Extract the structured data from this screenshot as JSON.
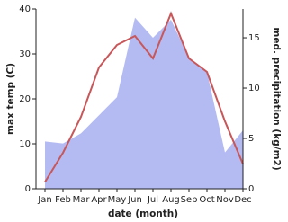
{
  "chart_data": {
    "type": "line",
    "categories": [
      "Jan",
      "Feb",
      "Mar",
      "Apr",
      "May",
      "Jun",
      "Jul",
      "Aug",
      "Sep",
      "Oct",
      "Nov",
      "Dec"
    ],
    "xlabel": "date (month)",
    "ylabel": "max temp (C)",
    "y2label": "med. precipitation (kg/m2)",
    "ylim": [
      0,
      40
    ],
    "yticks": [
      0,
      10,
      20,
      30,
      40
    ],
    "y2lim": [
      0,
      17.86
    ],
    "y2ticks": [
      0,
      5,
      10,
      15
    ],
    "series": [
      {
        "name": "med. precipitation",
        "axis": "y2",
        "kind": "area",
        "color": "#b3bbf2",
        "values": [
          4.7,
          4.5,
          5.5,
          7.3,
          9.1,
          17,
          15,
          16.8,
          13,
          11.6,
          3.6,
          5.8
        ]
      },
      {
        "name": "max temp",
        "kind": "line",
        "color": "#c8575a",
        "values": [
          1.5,
          8,
          16,
          27,
          32,
          34,
          29,
          39,
          29,
          26,
          15,
          5.5
        ]
      }
    ]
  }
}
